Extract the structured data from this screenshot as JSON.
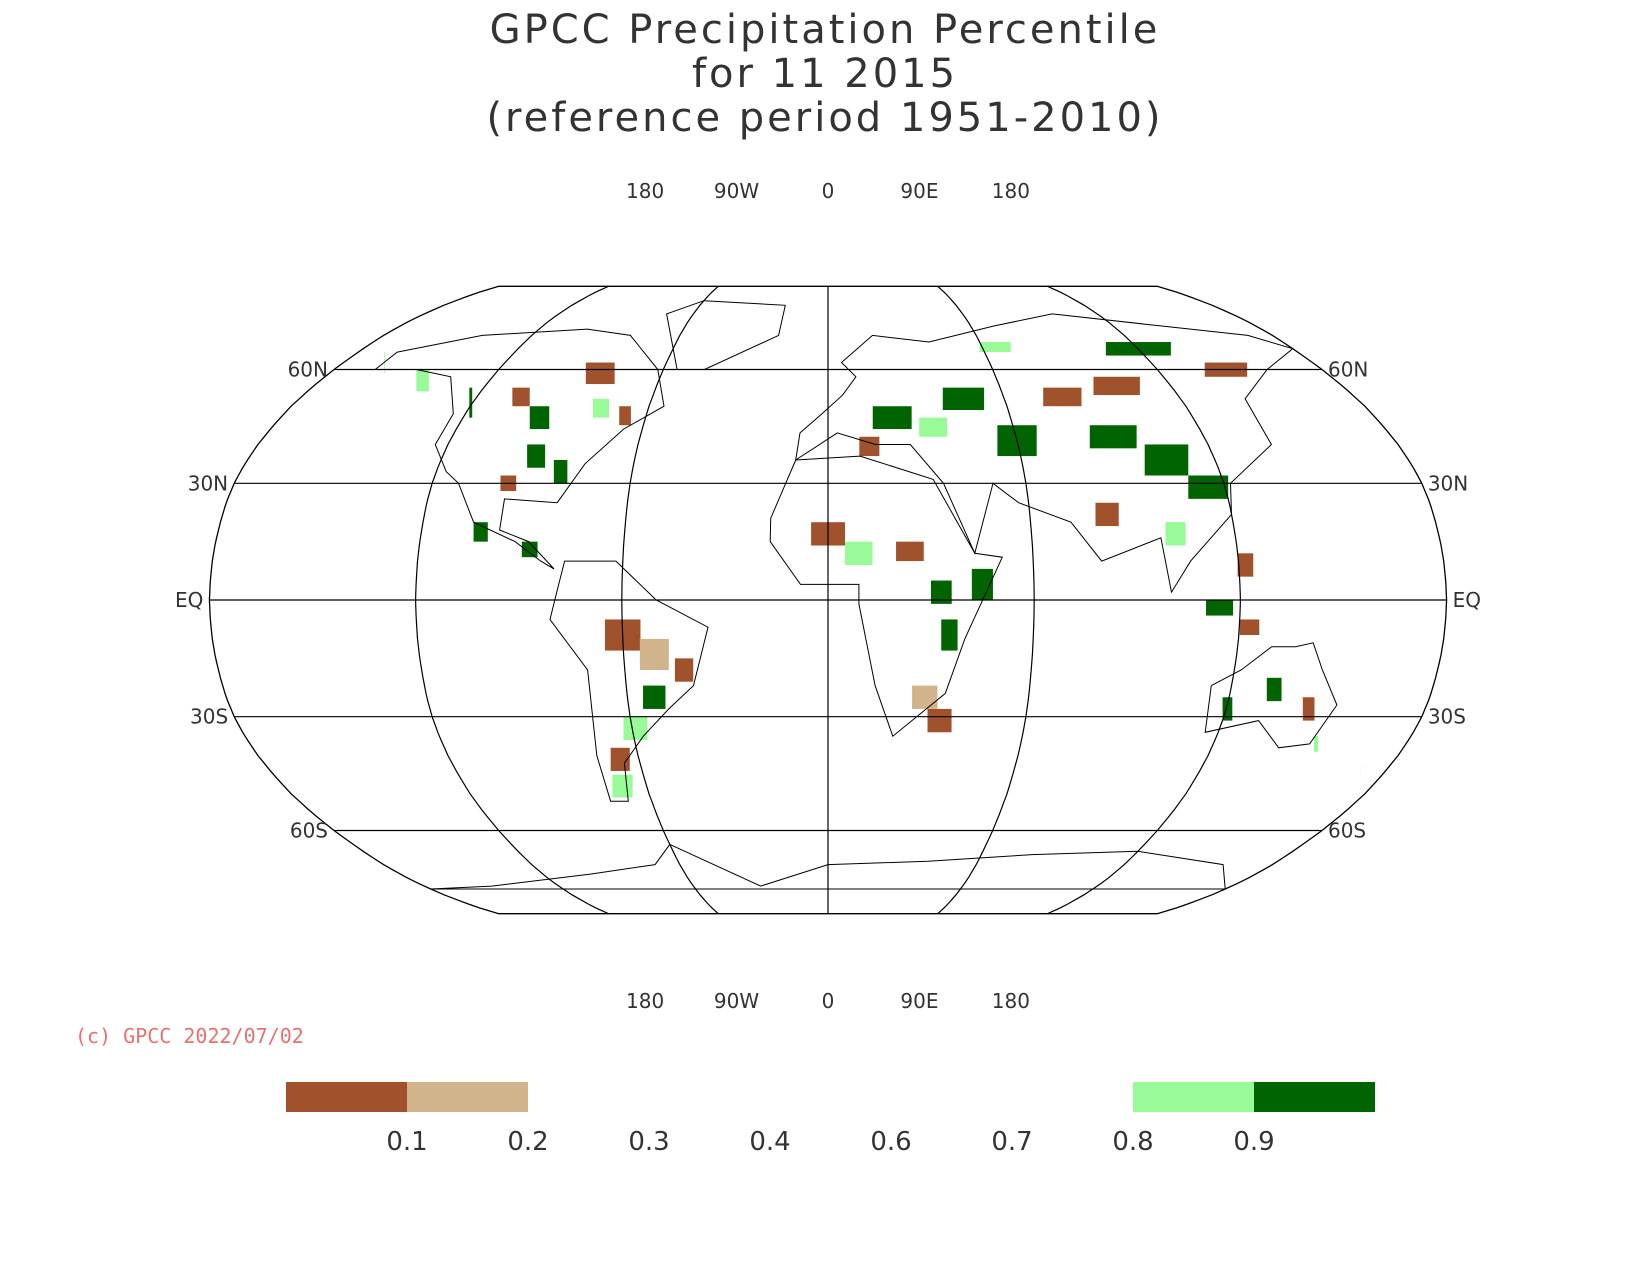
{
  "title": {
    "line1": "GPCC Precipitation Percentile",
    "line2": "for 11 2015",
    "line3": "(reference period 1951-2010)"
  },
  "credit": "(c) GPCC 2022/07/02",
  "map": {
    "projection": "robinson",
    "lon_top_labels": [
      "180",
      "90W",
      "0",
      "90E",
      "180"
    ],
    "lon_bottom_labels": [
      "180",
      "90W",
      "0",
      "90E",
      "180"
    ],
    "lat_labels_left": [
      "60N",
      "30N",
      "EQ",
      "30S",
      "60S"
    ],
    "lat_labels_right": [
      "60N",
      "30N",
      "EQ",
      "30S",
      "60S"
    ],
    "lat_lines": [
      60,
      30,
      0,
      -30,
      -60
    ],
    "central_meridian_offset": 0
  },
  "legend": {
    "ticks": [
      "0.1",
      "0.2",
      "0.3",
      "0.4",
      "0.6",
      "0.7",
      "0.8",
      "0.9"
    ],
    "bins": [
      {
        "range": "<0.1",
        "color": "#a0522d"
      },
      {
        "range": "0.1-0.2",
        "color": "#d2b48c"
      },
      {
        "range": "0.2-0.3",
        "color": "#ffffff"
      },
      {
        "range": "0.3-0.4",
        "color": "#ffffff"
      },
      {
        "range": "0.4-0.6",
        "color": "#ffffff"
      },
      {
        "range": "0.6-0.7",
        "color": "#ffffff"
      },
      {
        "range": "0.7-0.8",
        "color": "#ffffff"
      },
      {
        "range": "0.8-0.9",
        "color": "#98fb98"
      },
      {
        "range": ">0.9",
        "color": "#006400"
      }
    ]
  },
  "colors": {
    "very_dry": "#a0522d",
    "dry": "#d2b48c",
    "wet": "#98fb98",
    "very_wet": "#006400",
    "grid": "#000000",
    "credit": "#e87070"
  }
}
